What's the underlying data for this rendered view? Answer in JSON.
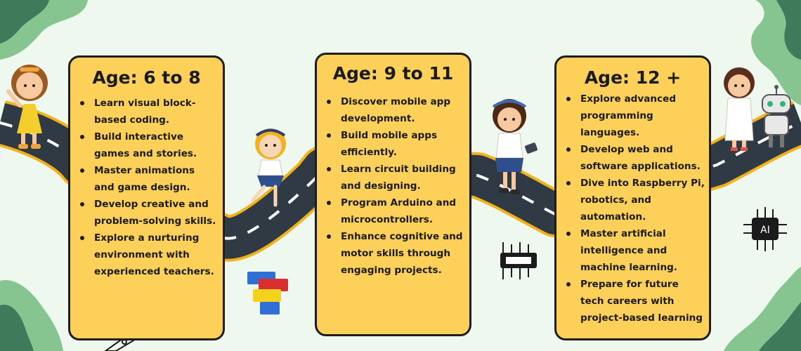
{
  "columns": [
    {
      "title": "Age: 6 to 8",
      "items": [
        "Learn visual block-based coding.",
        "Build interactive games and stories.",
        "Master animations and game design.",
        "Develop creative and problem-solving skills.",
        "Explore a nurturing environment with experienced teachers."
      ]
    },
    {
      "title": "Age: 9 to 11",
      "items": [
        "Discover mobile app development.",
        "Build mobile apps efficiently.",
        "Learn circuit building and designing.",
        "Program Arduino and microcontrollers.",
        "Enhance cognitive and motor skills through engaging projects."
      ]
    },
    {
      "title": "Age: 12 +",
      "items": [
        "Explore advanced programming languages.",
        "Develop web and software applications.",
        "Dive into Raspberry Pi, robotics, and automation.",
        "Master artificial intelligence and machine learning.",
        "Prepare for future tech careers with project-based learning"
      ]
    }
  ],
  "ai_chip_label": "AI",
  "colors": {
    "background": "#eef8ef",
    "card": "#fdd05a",
    "road": "#2f3a45",
    "road_edge": "#f2b21c",
    "leaf_dark": "#3f7a5a",
    "leaf_light": "#86c58f"
  }
}
